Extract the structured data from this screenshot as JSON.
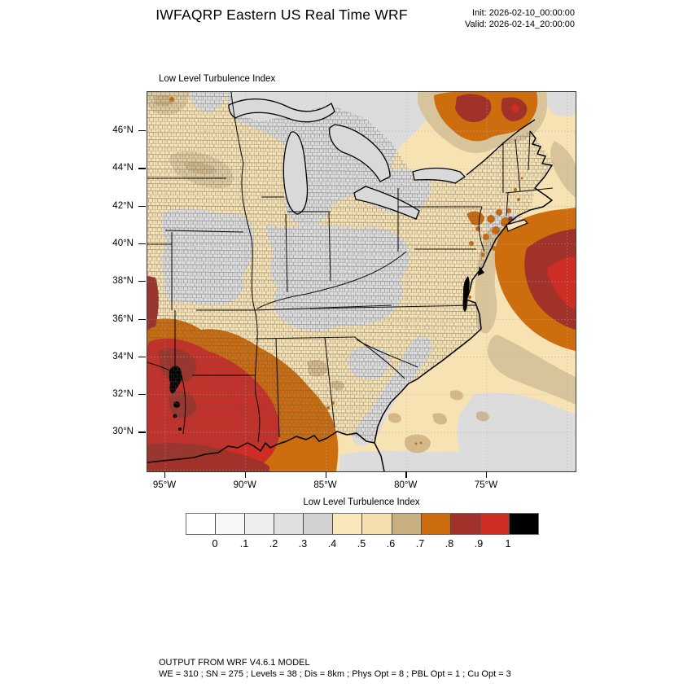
{
  "header": {
    "title": "IWFAQRP Eastern US Real Time WRF",
    "init_stamp": "Init: 2026-02-10_00:00:00",
    "valid_stamp": "Valid: 2026-02-14_20:00:00"
  },
  "map": {
    "field_title": "Low Level Turbulence Index",
    "lat_tick_labels": [
      "46°N",
      "44°N",
      "42°N",
      "40°N",
      "38°N",
      "36°N",
      "34°N",
      "32°N",
      "30°N"
    ],
    "lon_tick_labels": [
      "95°W",
      "90°W",
      "85°W",
      "80°W",
      "75°W"
    ]
  },
  "colorbar": {
    "title": "Low Level Turbulence Index",
    "tick_labels": [
      "0",
      ".1",
      ".2",
      ".3",
      ".4",
      ".5",
      ".6",
      ".7",
      ".8",
      ".9",
      "1"
    ],
    "cell_colors": [
      "#ffffff",
      "#f7f7f7",
      "#eeeeee",
      "#e0e0e0",
      "#d2d2d2",
      "#fbe7bc",
      "#f4dfae",
      "#c9ae80",
      "#ce6d0d",
      "#a23229",
      "#ce2d26",
      "#000000"
    ]
  },
  "footer": {
    "line1": "OUTPUT FROM WRF V4.6.1 MODEL",
    "line2": "WE = 310 ; SN = 275 ; Levels = 38 ; Dis = 8km ; Phys Opt = 8 ; PBL Opt = 1 ; Cu Opt = 3"
  },
  "chart_data": {
    "type": "heatmap",
    "title": "Low Level Turbulence Index",
    "legend_bins": [
      0,
      0.1,
      0.2,
      0.3,
      0.4,
      0.5,
      0.6,
      0.7,
      0.8,
      0.9,
      1
    ],
    "legend_position": "bottom",
    "notable_regions": [
      {
        "area": "Eastern Texas / Arkansas / Louisiana / western Mississippi",
        "value_range": "0.8-1.0+",
        "color": "red with dark-red and black cores"
      },
      {
        "area": "Western Atlantic off New Jersey to offshore right edge",
        "value_range": "0.7-0.95",
        "color": "orange band with dark-red and red core"
      },
      {
        "area": "Southern Quebec (top right)",
        "value_range": "0.7-0.9",
        "color": "orange blob with dark-red patches"
      },
      {
        "area": "NE Pennsylvania / SE New York",
        "value_range": "0.7-0.8",
        "color": "orange speckles"
      },
      {
        "area": "Great Lakes, Ohio Valley, Iowa/Missouri, SE coastal waters",
        "value_range": "0.1-0.4",
        "color": "light gray"
      },
      {
        "area": "Most remaining land and ocean",
        "value_range": "0.4-0.6",
        "color": "cream/tan"
      }
    ]
  }
}
